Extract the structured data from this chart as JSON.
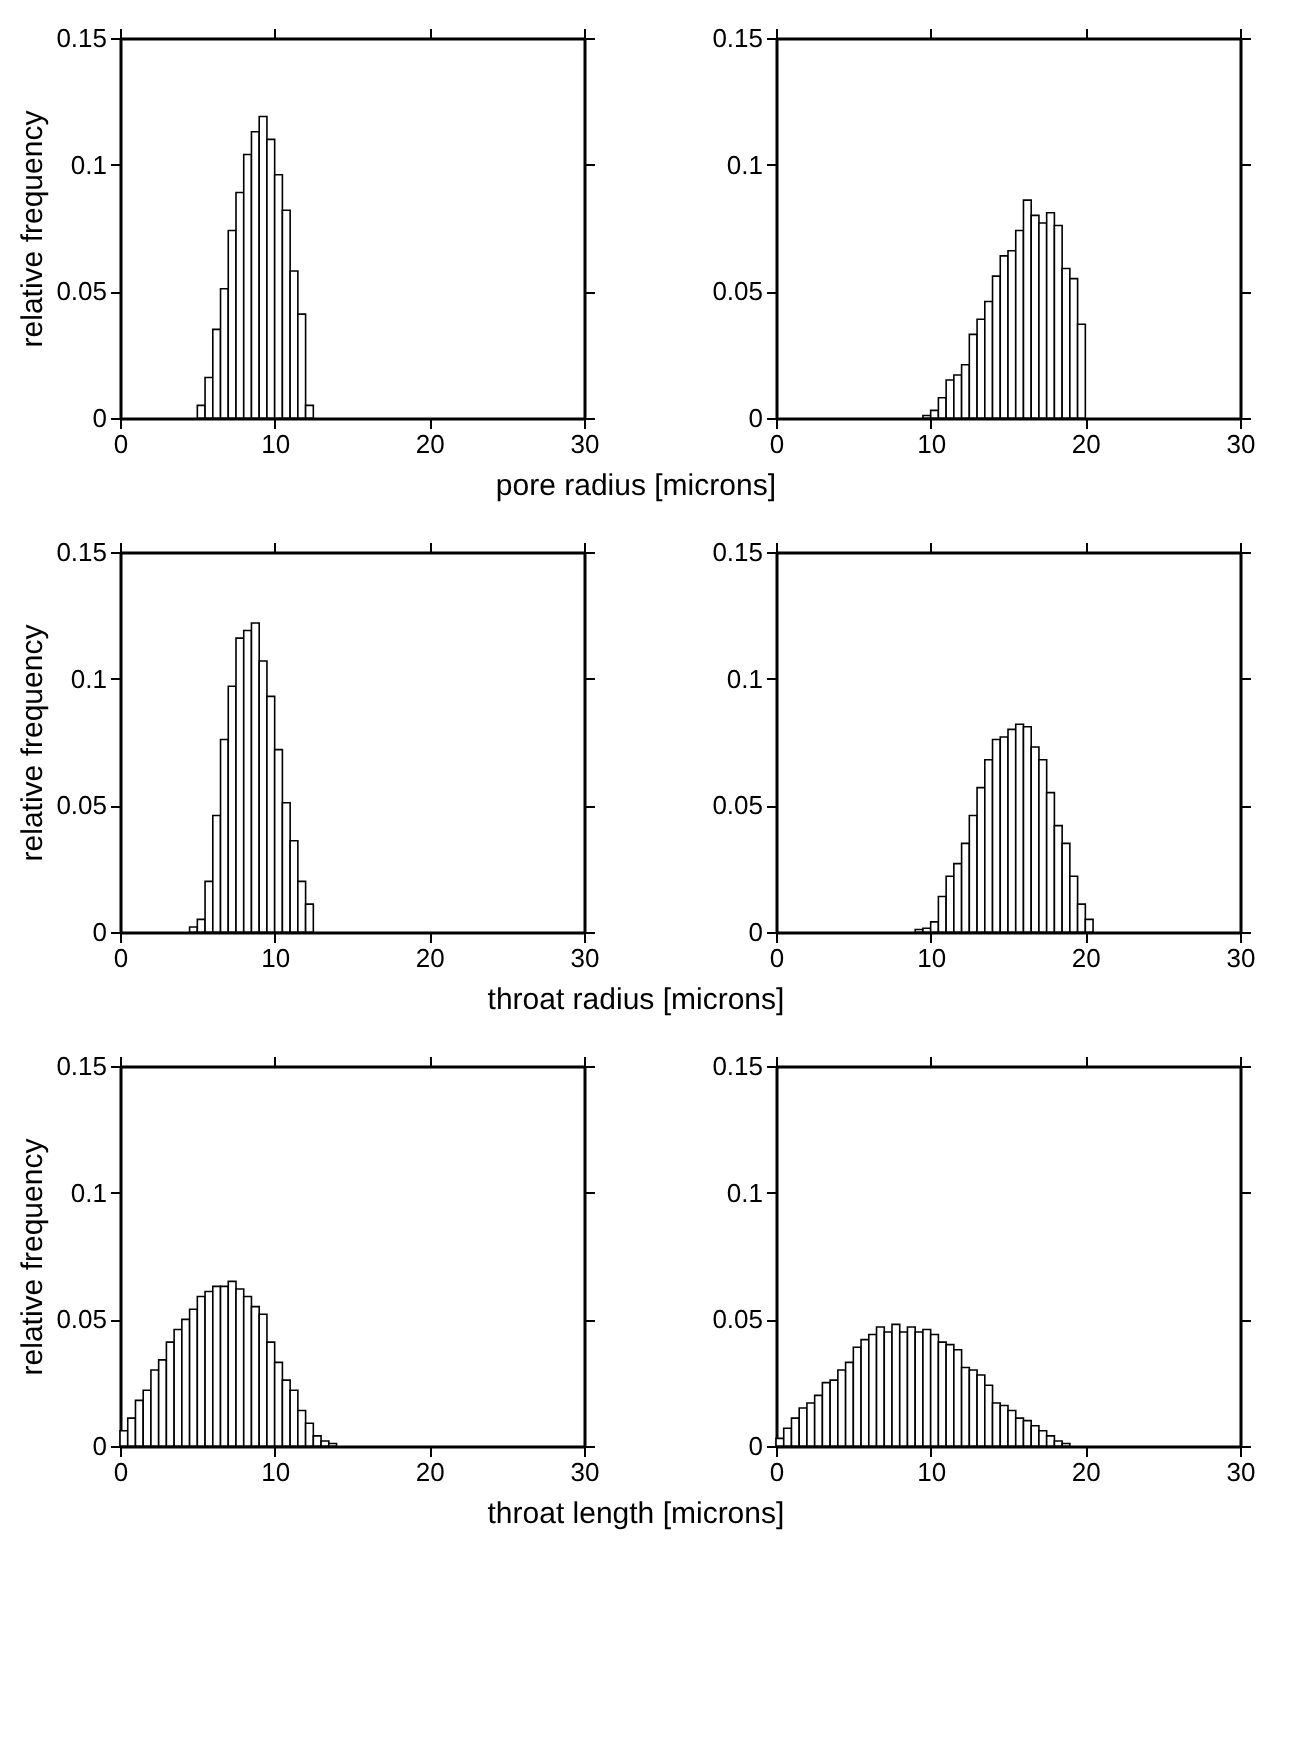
{
  "chart_data": [
    {
      "type": "histogram",
      "ylabel": "relative frequency",
      "xlabel": "pore radius [microns]",
      "color": "#ffffff",
      "xlim": [
        0,
        30
      ],
      "ylim": [
        0,
        0.15
      ],
      "xticks": [
        0,
        10,
        20,
        30
      ],
      "yticks": [
        0,
        0.05,
        0.1,
        0.15
      ],
      "grid": false,
      "bins": [
        5,
        5.5,
        6,
        6.5,
        7,
        7.5,
        8,
        8.5,
        9,
        9.5,
        10,
        10.5,
        11,
        11.5,
        12,
        12.5
      ],
      "values": [
        0.005,
        0.016,
        0.035,
        0.051,
        0.074,
        0.089,
        0.104,
        0.113,
        0.119,
        0.11,
        0.096,
        0.082,
        0.058,
        0.041,
        0.005
      ]
    },
    {
      "type": "histogram",
      "color": "#ffffff",
      "xlim": [
        0,
        30
      ],
      "ylim": [
        0,
        0.15
      ],
      "xticks": [
        0,
        10,
        20,
        30
      ],
      "yticks": [
        0,
        0.05,
        0.1,
        0.15
      ],
      "grid": false,
      "bins": [
        9.5,
        10,
        10.5,
        11,
        11.5,
        12,
        12.5,
        13,
        13.5,
        14,
        14.5,
        15,
        15.5,
        16,
        16.5,
        17,
        17.5,
        18,
        18.5,
        19,
        19.5,
        20
      ],
      "values": [
        0.001,
        0.003,
        0.008,
        0.015,
        0.017,
        0.021,
        0.033,
        0.039,
        0.046,
        0.056,
        0.064,
        0.066,
        0.074,
        0.086,
        0.08,
        0.077,
        0.081,
        0.076,
        0.059,
        0.055,
        0.037
      ]
    },
    {
      "type": "histogram",
      "ylabel": "relative frequency",
      "xlabel": "throat radius [microns]",
      "color": "#ffffff",
      "xlim": [
        0,
        30
      ],
      "ylim": [
        0,
        0.15
      ],
      "xticks": [
        0,
        10,
        20,
        30
      ],
      "yticks": [
        0,
        0.05,
        0.1,
        0.15
      ],
      "grid": false,
      "bins": [
        4.5,
        5,
        5.5,
        6,
        6.5,
        7,
        7.5,
        8,
        8.5,
        9,
        9.5,
        10,
        10.5,
        11,
        11.5,
        12,
        12.5
      ],
      "values": [
        0.002,
        0.005,
        0.02,
        0.046,
        0.076,
        0.097,
        0.116,
        0.119,
        0.122,
        0.107,
        0.093,
        0.072,
        0.051,
        0.036,
        0.02,
        0.011
      ]
    },
    {
      "type": "histogram",
      "color": "#ffffff",
      "xlim": [
        0,
        30
      ],
      "ylim": [
        0,
        0.15
      ],
      "xticks": [
        0,
        10,
        20,
        30
      ],
      "yticks": [
        0,
        0.05,
        0.1,
        0.15
      ],
      "grid": false,
      "bins": [
        9,
        9.5,
        10,
        10.5,
        11,
        11.5,
        12,
        12.5,
        13,
        13.5,
        14,
        14.5,
        15,
        15.5,
        16,
        16.5,
        17,
        17.5,
        18,
        18.5,
        19,
        19.5,
        20,
        20.5
      ],
      "values": [
        0.001,
        0.0015,
        0.004,
        0.014,
        0.022,
        0.027,
        0.035,
        0.046,
        0.057,
        0.068,
        0.076,
        0.077,
        0.08,
        0.082,
        0.081,
        0.073,
        0.068,
        0.055,
        0.042,
        0.035,
        0.022,
        0.011,
        0.005
      ]
    },
    {
      "type": "histogram",
      "ylabel": "relative frequency",
      "xlabel": "throat length [microns]",
      "color": "#ffffff",
      "xlim": [
        0,
        30
      ],
      "ylim": [
        0,
        0.15
      ],
      "xticks": [
        0,
        10,
        20,
        30
      ],
      "yticks": [
        0,
        0.05,
        0.1,
        0.15
      ],
      "grid": false,
      "bins": [
        0,
        0.5,
        1,
        1.5,
        2,
        2.5,
        3,
        3.5,
        4,
        4.5,
        5,
        5.5,
        6,
        6.5,
        7,
        7.5,
        8,
        8.5,
        9,
        9.5,
        10,
        10.5,
        11,
        11.5,
        12,
        12.5,
        13,
        13.5,
        14
      ],
      "values": [
        0.006,
        0.011,
        0.018,
        0.022,
        0.03,
        0.034,
        0.041,
        0.046,
        0.05,
        0.054,
        0.059,
        0.061,
        0.063,
        0.063,
        0.065,
        0.062,
        0.059,
        0.055,
        0.052,
        0.041,
        0.033,
        0.026,
        0.022,
        0.014,
        0.009,
        0.004,
        0.002,
        0.001
      ]
    },
    {
      "type": "histogram",
      "color": "#ffffff",
      "xlim": [
        0,
        30
      ],
      "ylim": [
        0,
        0.15
      ],
      "xticks": [
        0,
        10,
        20,
        30
      ],
      "yticks": [
        0,
        0.05,
        0.1,
        0.15
      ],
      "grid": false,
      "bins": [
        0,
        0.5,
        1,
        1.5,
        2,
        2.5,
        3,
        3.5,
        4,
        4.5,
        5,
        5.5,
        6,
        6.5,
        7,
        7.5,
        8,
        8.5,
        9,
        9.5,
        10,
        10.5,
        11,
        11.5,
        12,
        12.5,
        13,
        13.5,
        14,
        14.5,
        15,
        15.5,
        16,
        16.5,
        17,
        17.5,
        18,
        18.5,
        19
      ],
      "values": [
        0.003,
        0.007,
        0.011,
        0.015,
        0.017,
        0.02,
        0.025,
        0.026,
        0.03,
        0.033,
        0.039,
        0.042,
        0.044,
        0.047,
        0.045,
        0.048,
        0.045,
        0.047,
        0.045,
        0.046,
        0.044,
        0.041,
        0.04,
        0.038,
        0.031,
        0.03,
        0.028,
        0.024,
        0.017,
        0.016,
        0.014,
        0.011,
        0.01,
        0.008,
        0.006,
        0.004,
        0.002,
        0.001
      ]
    }
  ]
}
